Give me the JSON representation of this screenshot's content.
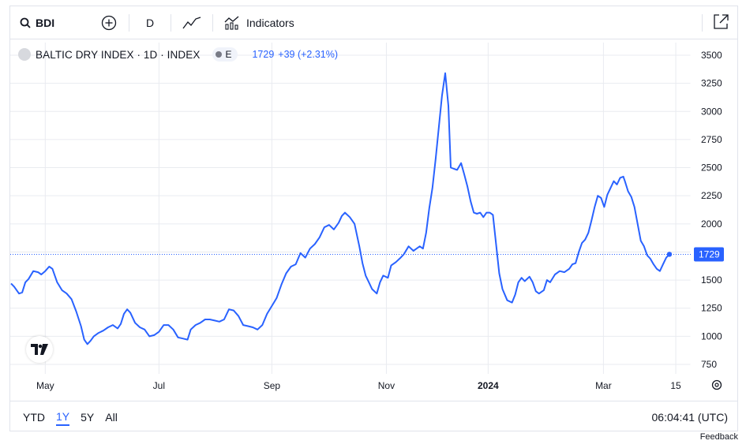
{
  "toolbar": {
    "symbol": "BDI",
    "interval": "D",
    "indicators_label": "Indicators"
  },
  "legend": {
    "title": "BALTIC DRY INDEX · 1D · INDEX",
    "badge": "E",
    "last": "1729",
    "change": "+39 (+2.31%)"
  },
  "last_price_tag": "1729",
  "bottom": {
    "ranges": [
      "YTD",
      "1Y",
      "5Y",
      "All"
    ],
    "active_range": "1Y",
    "time": "06:04:41 (UTC)"
  },
  "feedback": "Feedback",
  "colors": {
    "line": "#2962ff",
    "accent": "#2962ff",
    "grid": "#e9ebf0"
  },
  "chart_data": {
    "type": "line",
    "series": [
      {
        "values": [
          [
            0,
            1470
          ],
          [
            4,
            1440
          ],
          [
            10,
            1380
          ],
          [
            14,
            1390
          ],
          [
            18,
            1480
          ],
          [
            22,
            1510
          ],
          [
            28,
            1580
          ],
          [
            34,
            1570
          ],
          [
            38,
            1550
          ],
          [
            43,
            1580
          ],
          [
            48,
            1620
          ],
          [
            52,
            1600
          ],
          [
            58,
            1480
          ],
          [
            64,
            1410
          ],
          [
            70,
            1380
          ],
          [
            76,
            1330
          ],
          [
            82,
            1220
          ],
          [
            88,
            1090
          ],
          [
            92,
            970
          ],
          [
            96,
            930
          ],
          [
            100,
            960
          ],
          [
            104,
            1000
          ],
          [
            110,
            1030
          ],
          [
            116,
            1050
          ],
          [
            122,
            1080
          ],
          [
            128,
            1100
          ],
          [
            134,
            1070
          ],
          [
            138,
            1110
          ],
          [
            142,
            1200
          ],
          [
            146,
            1240
          ],
          [
            150,
            1210
          ],
          [
            156,
            1120
          ],
          [
            162,
            1080
          ],
          [
            168,
            1060
          ],
          [
            174,
            1000
          ],
          [
            180,
            1010
          ],
          [
            186,
            1040
          ],
          [
            192,
            1100
          ],
          [
            198,
            1100
          ],
          [
            204,
            1060
          ],
          [
            210,
            990
          ],
          [
            216,
            980
          ],
          [
            222,
            970
          ],
          [
            226,
            1060
          ],
          [
            232,
            1100
          ],
          [
            238,
            1120
          ],
          [
            244,
            1150
          ],
          [
            250,
            1150
          ],
          [
            256,
            1140
          ],
          [
            262,
            1130
          ],
          [
            268,
            1150
          ],
          [
            274,
            1240
          ],
          [
            280,
            1230
          ],
          [
            286,
            1180
          ],
          [
            292,
            1100
          ],
          [
            298,
            1090
          ],
          [
            304,
            1080
          ],
          [
            310,
            1060
          ],
          [
            316,
            1100
          ],
          [
            322,
            1200
          ],
          [
            328,
            1270
          ],
          [
            334,
            1340
          ],
          [
            340,
            1460
          ],
          [
            346,
            1560
          ],
          [
            352,
            1620
          ],
          [
            358,
            1640
          ],
          [
            364,
            1740
          ],
          [
            370,
            1700
          ],
          [
            376,
            1780
          ],
          [
            382,
            1820
          ],
          [
            388,
            1880
          ],
          [
            394,
            1970
          ],
          [
            400,
            1990
          ],
          [
            406,
            1950
          ],
          [
            412,
            2010
          ],
          [
            416,
            2070
          ],
          [
            420,
            2100
          ],
          [
            426,
            2060
          ],
          [
            432,
            2000
          ],
          [
            438,
            1800
          ],
          [
            442,
            1650
          ],
          [
            446,
            1540
          ],
          [
            450,
            1480
          ],
          [
            454,
            1420
          ],
          [
            460,
            1380
          ],
          [
            464,
            1480
          ],
          [
            468,
            1540
          ],
          [
            474,
            1520
          ],
          [
            478,
            1630
          ],
          [
            484,
            1660
          ],
          [
            490,
            1700
          ],
          [
            494,
            1730
          ],
          [
            500,
            1800
          ],
          [
            506,
            1760
          ],
          [
            510,
            1780
          ],
          [
            514,
            1800
          ],
          [
            518,
            1780
          ],
          [
            522,
            1920
          ],
          [
            526,
            2140
          ],
          [
            530,
            2320
          ],
          [
            534,
            2580
          ],
          [
            538,
            2860
          ],
          [
            542,
            3140
          ],
          [
            546,
            3340
          ],
          [
            550,
            3050
          ],
          [
            553,
            2500
          ],
          [
            557,
            2490
          ],
          [
            561,
            2480
          ],
          [
            566,
            2540
          ],
          [
            570,
            2440
          ],
          [
            574,
            2330
          ],
          [
            578,
            2200
          ],
          [
            582,
            2100
          ],
          [
            586,
            2090
          ],
          [
            590,
            2100
          ],
          [
            594,
            2060
          ],
          [
            598,
            2100
          ],
          [
            602,
            2100
          ],
          [
            606,
            2080
          ],
          [
            610,
            1820
          ],
          [
            614,
            1560
          ],
          [
            618,
            1420
          ],
          [
            624,
            1320
          ],
          [
            630,
            1300
          ],
          [
            634,
            1370
          ],
          [
            638,
            1480
          ],
          [
            642,
            1520
          ],
          [
            646,
            1490
          ],
          [
            652,
            1530
          ],
          [
            656,
            1480
          ],
          [
            660,
            1400
          ],
          [
            664,
            1380
          ],
          [
            670,
            1410
          ],
          [
            674,
            1500
          ],
          [
            678,
            1480
          ],
          [
            684,
            1550
          ],
          [
            690,
            1580
          ],
          [
            696,
            1570
          ],
          [
            702,
            1600
          ],
          [
            706,
            1640
          ],
          [
            710,
            1650
          ],
          [
            714,
            1750
          ],
          [
            718,
            1830
          ],
          [
            722,
            1860
          ],
          [
            726,
            1920
          ],
          [
            730,
            2030
          ],
          [
            734,
            2150
          ],
          [
            738,
            2250
          ],
          [
            742,
            2230
          ],
          [
            746,
            2150
          ],
          [
            750,
            2260
          ],
          [
            754,
            2320
          ],
          [
            758,
            2380
          ],
          [
            762,
            2350
          ],
          [
            766,
            2410
          ],
          [
            770,
            2420
          ],
          [
            772,
            2380
          ],
          [
            776,
            2290
          ],
          [
            780,
            2240
          ],
          [
            784,
            2150
          ],
          [
            788,
            2000
          ],
          [
            792,
            1850
          ],
          [
            796,
            1800
          ],
          [
            800,
            1720
          ],
          [
            804,
            1690
          ],
          [
            808,
            1640
          ],
          [
            812,
            1600
          ],
          [
            816,
            1580
          ],
          [
            820,
            1640
          ],
          [
            824,
            1700
          ],
          [
            828,
            1729
          ]
        ]
      }
    ],
    "y_ticks": [
      750,
      1000,
      1250,
      1500,
      1750,
      2000,
      2250,
      2500,
      2750,
      3000,
      3250,
      3500
    ],
    "y_tick_labels": [
      "750",
      "1000",
      "1250",
      "1500",
      "",
      "2000",
      "2250",
      "2500",
      "2750",
      "3000",
      "3250",
      "3500"
    ],
    "ylim": [
      750,
      3500
    ],
    "x_ticks": [
      {
        "label": "May",
        "x": 43
      },
      {
        "label": "Jul",
        "x": 186
      },
      {
        "label": "Sep",
        "x": 328
      },
      {
        "label": "Nov",
        "x": 472
      },
      {
        "label": "2024",
        "x": 600
      },
      {
        "label": "Mar",
        "x": 745
      },
      {
        "label": "15",
        "x": 836
      }
    ],
    "xlim": [
      0,
      828
    ],
    "grid": true,
    "last_value": 1729
  }
}
